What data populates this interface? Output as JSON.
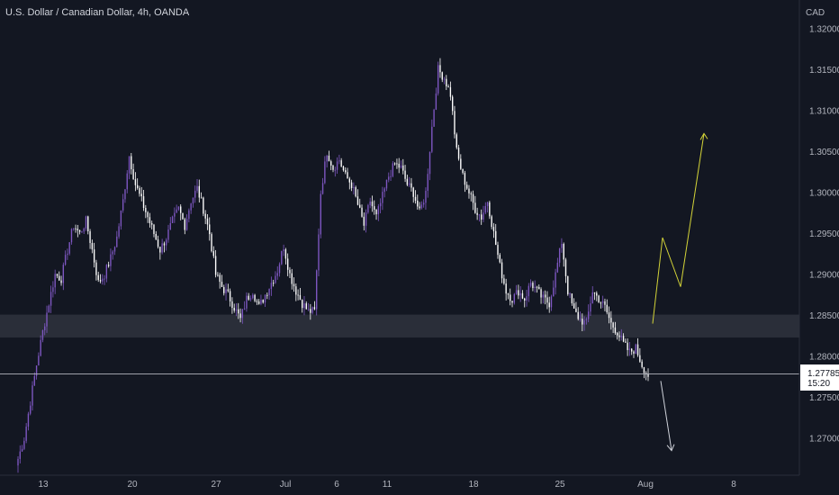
{
  "header": {
    "title": "U.S. Dollar / Canadian Dollar, 4h, OANDA"
  },
  "axis": {
    "currency": "CAD",
    "current_price": "1.27785",
    "countdown": "15:20"
  },
  "colors": {
    "background": "#131722",
    "bull": "#7e57c2",
    "bear": "#ffffff",
    "zone": "#2a2e39",
    "projection_up": "#d4d438",
    "projection_down": "#d1d4dc",
    "price_line": "#b2b5be",
    "text": "#b2b5be"
  },
  "chart_data": {
    "type": "candlestick",
    "title": "U.S. Dollar / Canadian Dollar, 4h, OANDA",
    "ylabel": "CAD",
    "ylim": [
      1.2655,
      1.3235
    ],
    "y_ticks": [
      "1.32000",
      "1.31500",
      "1.31000",
      "1.30500",
      "1.30000",
      "1.29500",
      "1.29000",
      "1.28500",
      "1.28000",
      "1.27500",
      "1.27000"
    ],
    "x_ticks": [
      "13",
      "20",
      "27",
      "Jul",
      "6",
      "11",
      "18",
      "25",
      "Aug",
      "8"
    ],
    "last_price": 1.27785,
    "support_zone": [
      1.2823,
      1.2851
    ],
    "close_path": [
      [
        0,
        1.2675
      ],
      [
        1,
        1.27
      ],
      [
        2,
        1.2745
      ],
      [
        3,
        1.279
      ],
      [
        4,
        1.283
      ],
      [
        5,
        1.2865
      ],
      [
        6,
        1.29
      ],
      [
        7,
        1.2895
      ],
      [
        8,
        1.293
      ],
      [
        9,
        1.296
      ],
      [
        10,
        1.295
      ],
      [
        11,
        1.2965
      ],
      [
        12,
        1.293
      ],
      [
        13,
        1.289
      ],
      [
        14,
        1.29
      ],
      [
        15,
        1.292
      ],
      [
        16,
        1.2945
      ],
      [
        17,
        1.299
      ],
      [
        18,
        1.3045
      ],
      [
        19,
        1.301
      ],
      [
        20,
        1.299
      ],
      [
        21,
        1.297
      ],
      [
        22,
        1.295
      ],
      [
        23,
        1.293
      ],
      [
        24,
        1.2945
      ],
      [
        25,
        1.2965
      ],
      [
        26,
        1.298
      ],
      [
        27,
        1.296
      ],
      [
        28,
        1.299
      ],
      [
        29,
        1.3005
      ],
      [
        30,
        1.298
      ],
      [
        31,
        1.295
      ],
      [
        32,
        1.29
      ],
      [
        33,
        1.2885
      ],
      [
        34,
        1.2875
      ],
      [
        35,
        1.286
      ],
      [
        36,
        1.2845
      ],
      [
        37,
        1.287
      ],
      [
        38,
        1.288
      ],
      [
        39,
        1.286
      ],
      [
        40,
        1.2875
      ],
      [
        41,
        1.289
      ],
      [
        42,
        1.2905
      ],
      [
        43,
        1.2935
      ],
      [
        44,
        1.29
      ],
      [
        45,
        1.288
      ],
      [
        46,
        1.2865
      ],
      [
        47,
        1.2855
      ],
      [
        48,
        1.2855
      ],
      [
        49,
        1.3
      ],
      [
        50,
        1.305
      ],
      [
        51,
        1.303
      ],
      [
        52,
        1.304
      ],
      [
        53,
        1.302
      ],
      [
        54,
        1.301
      ],
      [
        55,
        1.2985
      ],
      [
        56,
        1.296
      ],
      [
        57,
        1.299
      ],
      [
        58,
        1.297
      ],
      [
        59,
        1.2995
      ],
      [
        60,
        1.302
      ],
      [
        61,
        1.3035
      ],
      [
        62,
        1.303
      ],
      [
        63,
        1.301
      ],
      [
        64,
        1.3
      ],
      [
        65,
        1.2975
      ],
      [
        66,
        1.3
      ],
      [
        67,
        1.308
      ],
      [
        68,
        1.315
      ],
      [
        69,
        1.314
      ],
      [
        70,
        1.312
      ],
      [
        71,
        1.305
      ],
      [
        72,
        1.302
      ],
      [
        73,
        1.3
      ],
      [
        74,
        1.298
      ],
      [
        75,
        1.297
      ],
      [
        76,
        1.299
      ],
      [
        77,
        1.295
      ],
      [
        78,
        1.291
      ],
      [
        79,
        1.288
      ],
      [
        80,
        1.287
      ],
      [
        81,
        1.288
      ],
      [
        82,
        1.287
      ],
      [
        83,
        1.289
      ],
      [
        84,
        1.288
      ],
      [
        85,
        1.287
      ],
      [
        86,
        1.2865
      ],
      [
        87,
        1.29
      ],
      [
        88,
        1.294
      ],
      [
        89,
        1.288
      ],
      [
        90,
        1.2855
      ],
      [
        91,
        1.2845
      ],
      [
        92,
        1.284
      ],
      [
        93,
        1.288
      ],
      [
        94,
        1.287
      ],
      [
        95,
        1.286
      ],
      [
        96,
        1.284
      ],
      [
        97,
        1.283
      ],
      [
        98,
        1.2815
      ],
      [
        99,
        1.2805
      ],
      [
        100,
        1.281
      ],
      [
        101,
        1.279
      ],
      [
        102,
        1.2775
      ]
    ],
    "projection_up": [
      [
        1.284,
        0
      ],
      [
        1.2945,
        1
      ],
      [
        1.2885,
        2
      ],
      [
        1.3072,
        3
      ]
    ],
    "projection_down": [
      [
        1.277,
        0
      ],
      [
        1.2685,
        1
      ]
    ]
  }
}
